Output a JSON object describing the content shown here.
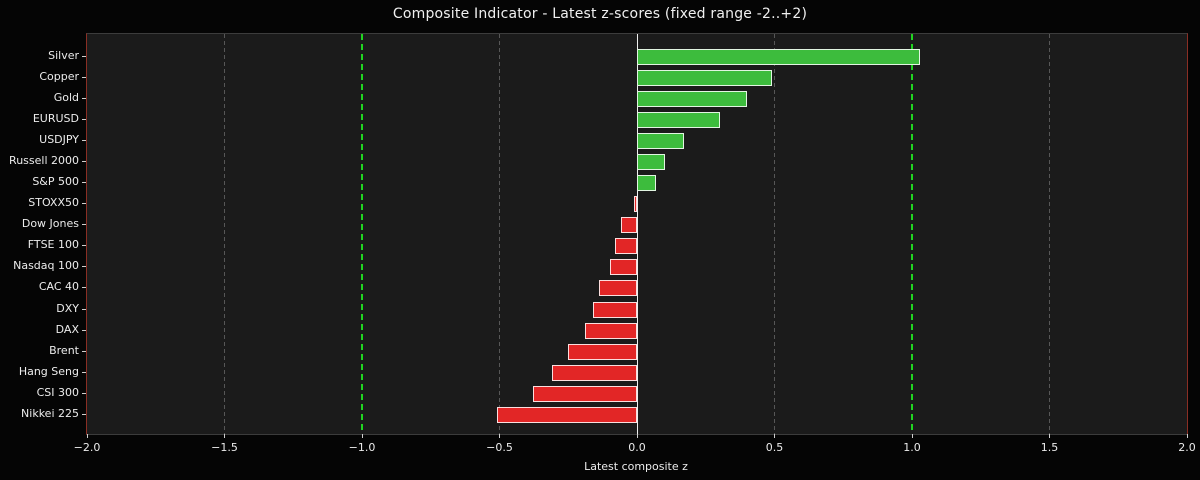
{
  "chart_data": {
    "type": "bar",
    "orientation": "horizontal",
    "title": "Composite Indicator - Latest z-scores (fixed range -2..+2)",
    "xlabel": "Latest composite z",
    "categories": [
      "Silver",
      "Copper",
      "Gold",
      "EURUSD",
      "USDJPY",
      "Russell 2000",
      "S&P 500",
      "STOXX50",
      "Dow Jones",
      "FTSE 100",
      "Nasdaq 100",
      "CAC 40",
      "DXY",
      "DAX",
      "Brent",
      "Hang Seng",
      "CSI 300",
      "Nikkei 225"
    ],
    "values": [
      1.03,
      0.49,
      0.4,
      0.3,
      0.17,
      0.1,
      0.07,
      -0.01,
      -0.06,
      -0.08,
      -0.1,
      -0.14,
      -0.16,
      -0.19,
      -0.25,
      -0.31,
      -0.38,
      -0.51
    ],
    "xlim": [
      -2.0,
      2.0
    ],
    "xtick_values": [
      -2.0,
      -1.5,
      -1.0,
      -0.5,
      0.0,
      0.5,
      1.0,
      1.5,
      2.0
    ],
    "xtick_labels": [
      "−2.0",
      "−1.5",
      "−1.0",
      "−0.5",
      "0.0",
      "0.5",
      "1.0",
      "1.5",
      "2.0"
    ],
    "gridline_values": [
      -1.5,
      -0.5,
      0.5,
      1.5
    ],
    "threshold_line_values": [
      -1.0,
      1.0
    ],
    "zero_line_value": 0.0,
    "legend": false,
    "colors": {
      "positive_bar": "#3dbc3d",
      "negative_bar": "#e22626",
      "bar_edge": "rgba(255,255,255,0.85)",
      "threshold_line": "#21d421",
      "zero_line": "#efefef",
      "gridline": "#575757",
      "figure_background": "#050505",
      "plot_background": "#1b1b1b",
      "text": "#ececec"
    }
  }
}
